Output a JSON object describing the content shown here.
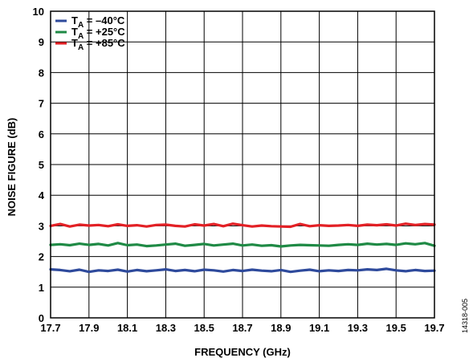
{
  "chart_data": {
    "type": "line",
    "title": "",
    "xlabel": "FREQUENCY (GHz)",
    "ylabel": "NOISE FIGURE (dB)",
    "xlim": [
      17.7,
      19.7
    ],
    "ylim": [
      0,
      10
    ],
    "x_ticks": [
      "17.7",
      "17.9",
      "18.1",
      "18.3",
      "18.5",
      "18.7",
      "18.9",
      "19.1",
      "19.3",
      "19.5",
      "19.7"
    ],
    "y_ticks": [
      "0",
      "1",
      "2",
      "3",
      "4",
      "5",
      "6",
      "7",
      "8",
      "9",
      "10"
    ],
    "grid": true,
    "legend_position": "top-left",
    "x": [
      17.7,
      17.75,
      17.8,
      17.85,
      17.9,
      17.95,
      18.0,
      18.05,
      18.1,
      18.15,
      18.2,
      18.25,
      18.3,
      18.35,
      18.4,
      18.45,
      18.5,
      18.55,
      18.6,
      18.65,
      18.7,
      18.75,
      18.8,
      18.85,
      18.9,
      18.95,
      19.0,
      19.05,
      19.1,
      19.15,
      19.2,
      19.25,
      19.3,
      19.35,
      19.4,
      19.45,
      19.5,
      19.55,
      19.6,
      19.65,
      19.7
    ],
    "series": [
      {
        "name": "T",
        "name_sub": "A",
        "name_rest": " = –40°C",
        "color": "#2e4a9c",
        "values": [
          1.58,
          1.56,
          1.52,
          1.57,
          1.5,
          1.55,
          1.53,
          1.57,
          1.51,
          1.56,
          1.52,
          1.55,
          1.58,
          1.53,
          1.56,
          1.52,
          1.57,
          1.55,
          1.51,
          1.56,
          1.53,
          1.57,
          1.54,
          1.52,
          1.56,
          1.5,
          1.54,
          1.57,
          1.52,
          1.55,
          1.53,
          1.56,
          1.55,
          1.58,
          1.56,
          1.6,
          1.55,
          1.52,
          1.56,
          1.53,
          1.54
        ]
      },
      {
        "name": "T",
        "name_sub": "A",
        "name_rest": " = +25°C",
        "color": "#1f8a45",
        "values": [
          2.38,
          2.4,
          2.37,
          2.42,
          2.38,
          2.41,
          2.36,
          2.44,
          2.37,
          2.39,
          2.34,
          2.36,
          2.39,
          2.42,
          2.35,
          2.38,
          2.41,
          2.36,
          2.39,
          2.42,
          2.36,
          2.39,
          2.35,
          2.37,
          2.33,
          2.36,
          2.38,
          2.37,
          2.36,
          2.35,
          2.38,
          2.4,
          2.38,
          2.42,
          2.39,
          2.41,
          2.38,
          2.43,
          2.4,
          2.44,
          2.35
        ]
      },
      {
        "name": "T",
        "name_sub": "A",
        "name_rest": " = +85°C",
        "color": "#e32025",
        "values": [
          3.0,
          3.06,
          2.98,
          3.04,
          3.01,
          3.03,
          2.99,
          3.05,
          3.0,
          3.02,
          2.98,
          3.03,
          3.04,
          3.0,
          2.98,
          3.05,
          3.01,
          3.06,
          2.99,
          3.07,
          3.02,
          2.98,
          3.01,
          2.99,
          2.98,
          2.97,
          3.06,
          2.99,
          3.02,
          3.0,
          3.01,
          3.03,
          3.0,
          3.04,
          3.02,
          3.05,
          3.01,
          3.07,
          3.03,
          3.06,
          3.04
        ]
      }
    ]
  },
  "figure_id": "14318-005"
}
